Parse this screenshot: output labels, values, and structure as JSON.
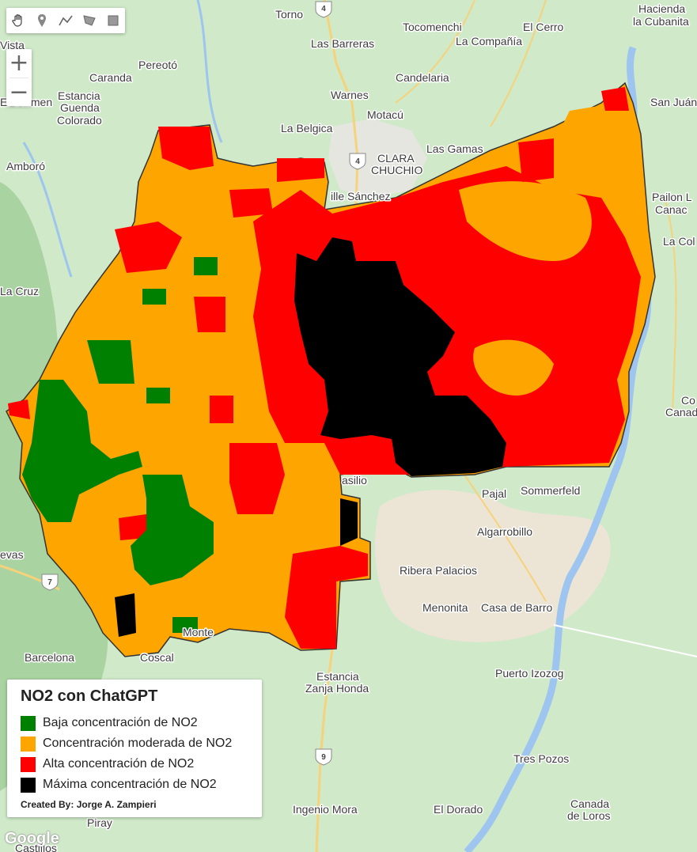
{
  "legend": {
    "title": "NO2 con ChatGPT",
    "items": [
      {
        "label": "Baja concentración de NO2",
        "color": "#008000"
      },
      {
        "label": "Concentración moderada de NO2",
        "color": "#ffa500"
      },
      {
        "label": "Alta concentración de NO2",
        "color": "#ff0000"
      },
      {
        "label": "Máxima concentración de NO2",
        "color": "#000000"
      }
    ],
    "credit": "Created By: Jorge A. Zampieri"
  },
  "toolbar": {
    "tools": [
      "hand-icon",
      "marker-icon",
      "polyline-icon",
      "polygon-icon",
      "rectangle-icon"
    ]
  },
  "zoom": {
    "in_label": "+",
    "out_label": "−"
  },
  "map": {
    "attribution": "Google",
    "places": {
      "torno": "Torno",
      "hacienda": "Hacienda",
      "cubanita": "la Cubanita",
      "vista": "Vista",
      "las_barreras": "Las Barreras",
      "tocomenchi": "Tocomenchi",
      "compania": "La Compañía",
      "el_cerro": "El Cerro",
      "pereoto": "Pereotó",
      "caranda": "Caranda",
      "candelaria": "Candelaria",
      "estancia1": "Estancia",
      "guenda": "Guenda",
      "colorado": "Colorado",
      "el_carmen": "El Carmen",
      "warnes": "Warnes",
      "motacu": "Motacú",
      "san_juan": "San Juán",
      "la_belgica": "La Belgica",
      "las_gamas": "Las Gamas",
      "clara": "CLARA",
      "chuchio": "CHUCHIO",
      "amboro": "Amboró",
      "villa_sanchez": "ille Sánchez",
      "pailon": "Pailon L",
      "canad1": "Canac",
      "la_col": "La Col",
      "la_cruz": "La Cruz",
      "co": "Co",
      "canad2": "Canad",
      "basilio": "asilio",
      "pajal": "Pajal",
      "sommerfeld": "Sommerfeld",
      "algarrobillo": "Algarrobillo",
      "nievas": "evas",
      "ribera": "Ribera Palacios",
      "menonita": "Menonita",
      "casa_barro": "Casa de Barro",
      "monte": "Monte",
      "barcelona": "Barcelona",
      "coscal": "Coscal",
      "estancia2": "Estancia",
      "zanja": "Zanja Honda",
      "izozog": "Puerto Izozog",
      "tres_pozos": "Tres Pozos",
      "ingenio": "Ingenio Mora",
      "el_dorado": "El Dorado",
      "canada": "Canada",
      "de_loros": "de Loros",
      "piray": "Piray",
      "castillos": "Castillos"
    },
    "shields": {
      "r4a": "4",
      "r4b": "4",
      "r7": "7",
      "r9": "9"
    }
  }
}
